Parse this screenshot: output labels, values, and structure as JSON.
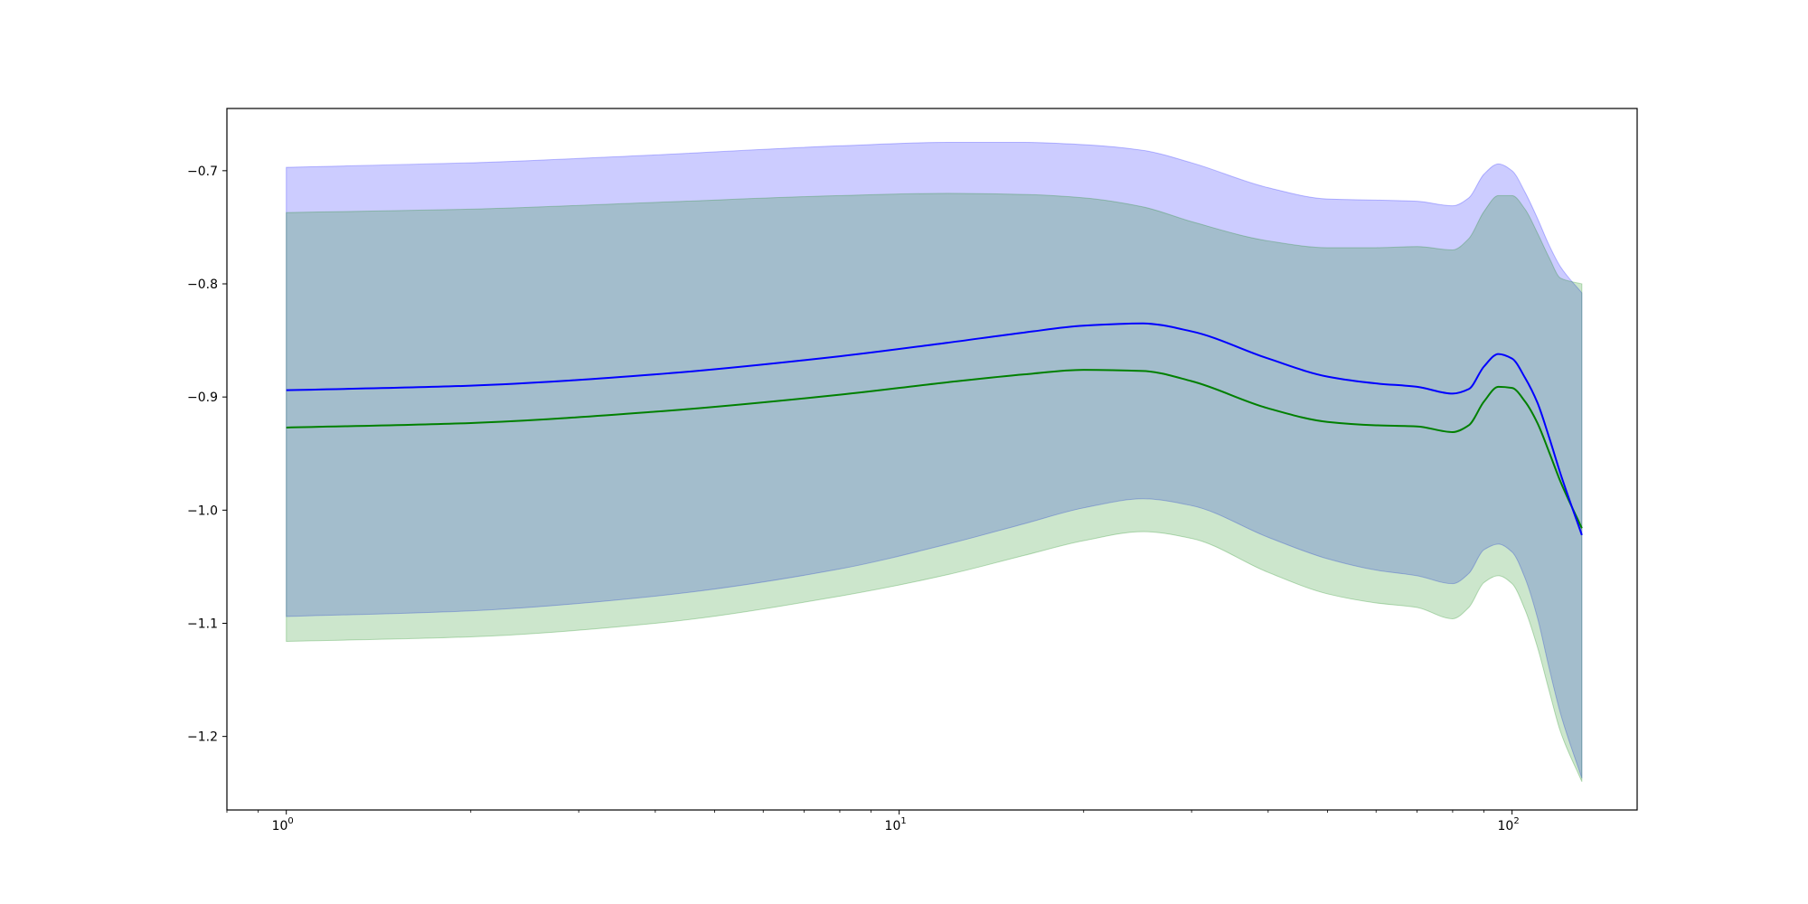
{
  "chart_data": {
    "type": "line",
    "title": "",
    "xlabel": "",
    "ylabel": "",
    "x_scale": "log",
    "xlim": [
      0.8,
      160
    ],
    "ylim": [
      -1.265,
      -0.645
    ],
    "grid": false,
    "x_ticks": [
      {
        "value": 1,
        "base": "10",
        "exp": "0"
      },
      {
        "value": 10,
        "base": "10",
        "exp": "1"
      },
      {
        "value": 100,
        "base": "10",
        "exp": "2"
      }
    ],
    "y_ticks": [
      {
        "value": -0.7,
        "label": "−0.7"
      },
      {
        "value": -0.8,
        "label": "−0.8"
      },
      {
        "value": -0.9,
        "label": "−0.9"
      },
      {
        "value": -1.0,
        "label": "−1.0"
      },
      {
        "value": -1.1,
        "label": "−1.1"
      },
      {
        "value": -1.2,
        "label": "−1.2"
      }
    ],
    "x": [
      1,
      2,
      4,
      8,
      12,
      16,
      20,
      25,
      30,
      40,
      50,
      60,
      70,
      80,
      85,
      90,
      95,
      100,
      105,
      110,
      115,
      120,
      130
    ],
    "series": [
      {
        "color": "#0000ff",
        "band_color": "#0000ff",
        "band_opacity": 0.2,
        "line": [
          -0.894,
          -0.89,
          -0.88,
          -0.864,
          -0.852,
          -0.843,
          -0.837,
          -0.835,
          -0.842,
          -0.866,
          -0.882,
          -0.888,
          -0.891,
          -0.897,
          -0.893,
          -0.873,
          -0.862,
          -0.866,
          -0.883,
          -0.905,
          -0.936,
          -0.968,
          -1.022
        ],
        "upper": [
          -0.697,
          -0.693,
          -0.686,
          -0.678,
          -0.675,
          -0.675,
          -0.677,
          -0.682,
          -0.693,
          -0.715,
          -0.725,
          -0.726,
          -0.727,
          -0.731,
          -0.724,
          -0.703,
          -0.694,
          -0.7,
          -0.719,
          -0.742,
          -0.766,
          -0.785,
          -0.808
        ],
        "lower": [
          -1.094,
          -1.089,
          -1.076,
          -1.052,
          -1.03,
          -1.012,
          -0.998,
          -0.99,
          -0.996,
          -1.024,
          -1.043,
          -1.053,
          -1.058,
          -1.065,
          -1.056,
          -1.035,
          -1.03,
          -1.037,
          -1.06,
          -1.095,
          -1.14,
          -1.18,
          -1.237
        ]
      },
      {
        "color": "#008000",
        "band_color": "#008000",
        "band_opacity": 0.2,
        "line": [
          -0.927,
          -0.923,
          -0.913,
          -0.898,
          -0.887,
          -0.88,
          -0.876,
          -0.877,
          -0.886,
          -0.91,
          -0.922,
          -0.925,
          -0.926,
          -0.931,
          -0.925,
          -0.904,
          -0.891,
          -0.892,
          -0.904,
          -0.923,
          -0.949,
          -0.975,
          -1.016
        ],
        "upper": [
          -0.737,
          -0.734,
          -0.728,
          -0.722,
          -0.72,
          -0.721,
          -0.724,
          -0.732,
          -0.745,
          -0.762,
          -0.768,
          -0.768,
          -0.767,
          -0.77,
          -0.76,
          -0.736,
          -0.722,
          -0.722,
          -0.734,
          -0.755,
          -0.777,
          -0.795,
          -0.8
        ],
        "lower": [
          -1.116,
          -1.112,
          -1.1,
          -1.076,
          -1.057,
          -1.04,
          -1.027,
          -1.019,
          -1.025,
          -1.055,
          -1.074,
          -1.082,
          -1.086,
          -1.096,
          -1.086,
          -1.064,
          -1.058,
          -1.065,
          -1.088,
          -1.121,
          -1.16,
          -1.196,
          -1.24
        ]
      }
    ]
  }
}
